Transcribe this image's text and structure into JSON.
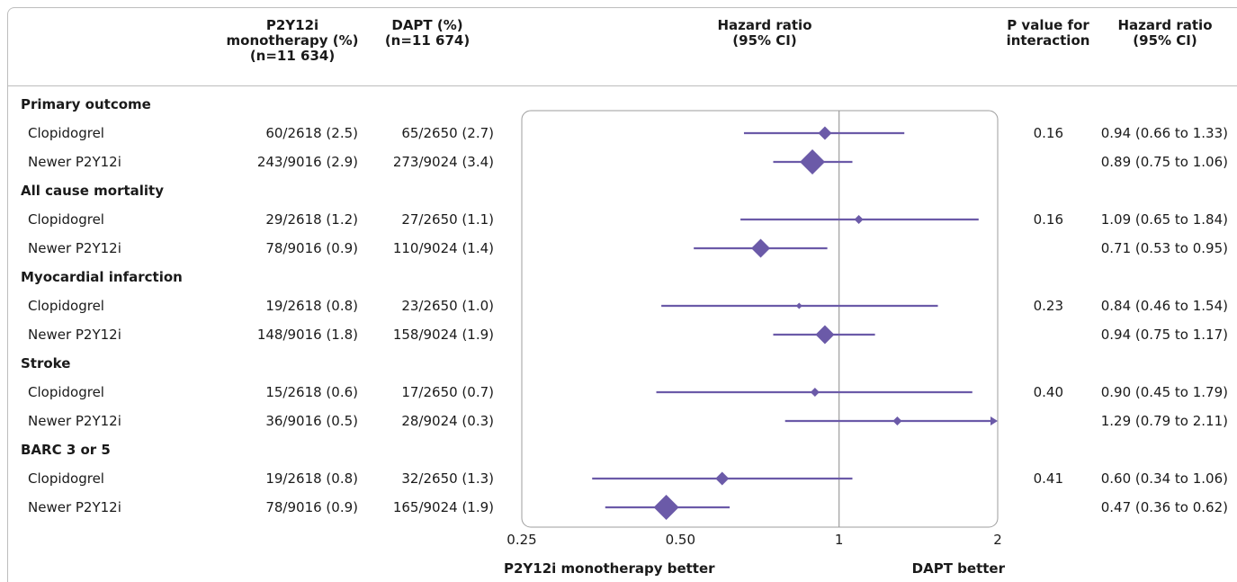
{
  "headers": {
    "p2y12": "P2Y12i\nmonotherapy (%)\n(n=11 634)",
    "dapt": "DAPT (%)\n(n=11 674)",
    "hr_plot": "Hazard ratio\n(95% CI)",
    "p_interaction": "P value for\ninteraction",
    "hr_text": "Hazard ratio\n(95% CI)"
  },
  "rows": [
    {
      "type": "group",
      "label": "Primary outcome"
    },
    {
      "type": "item",
      "label": "Clopidogrel",
      "p2y12": "60/2618 (2.5)",
      "dapt": "65/2650 (2.7)",
      "p": "0.16",
      "hr_text": "0.94 (0.66 to 1.33)"
    },
    {
      "type": "item",
      "label": "Newer P2Y12i",
      "p2y12": "243/9016 (2.9)",
      "dapt": "273/9024 (3.4)",
      "p": "",
      "hr_text": "0.89 (0.75 to 1.06)"
    },
    {
      "type": "group",
      "label": "All cause mortality"
    },
    {
      "type": "item",
      "label": "Clopidogrel",
      "p2y12": "29/2618 (1.2)",
      "dapt": "27/2650 (1.1)",
      "p": "0.16",
      "hr_text": "1.09 (0.65 to 1.84)"
    },
    {
      "type": "item",
      "label": "Newer P2Y12i",
      "p2y12": "78/9016 (0.9)",
      "dapt": "110/9024 (1.4)",
      "p": "",
      "hr_text": "0.71 (0.53 to 0.95)"
    },
    {
      "type": "group",
      "label": "Myocardial infarction"
    },
    {
      "type": "item",
      "label": "Clopidogrel",
      "p2y12": "19/2618 (0.8)",
      "dapt": "23/2650 (1.0)",
      "p": "0.23",
      "hr_text": "0.84 (0.46 to 1.54)"
    },
    {
      "type": "item",
      "label": "Newer P2Y12i",
      "p2y12": "148/9016 (1.8)",
      "dapt": "158/9024 (1.9)",
      "p": "",
      "hr_text": "0.94 (0.75 to 1.17)"
    },
    {
      "type": "group",
      "label": "Stroke"
    },
    {
      "type": "item",
      "label": "Clopidogrel",
      "p2y12": "15/2618 (0.6)",
      "dapt": "17/2650 (0.7)",
      "p": "0.40",
      "hr_text": "0.90 (0.45 to 1.79)"
    },
    {
      "type": "item",
      "label": "Newer P2Y12i",
      "p2y12": "36/9016 (0.5)",
      "dapt": "28/9024 (0.3)",
      "p": "",
      "hr_text": "1.29 (0.79 to 2.11)"
    },
    {
      "type": "group",
      "label": "BARC 3 or 5"
    },
    {
      "type": "item",
      "label": "Clopidogrel",
      "p2y12": "19/2618 (0.8)",
      "dapt": "32/2650 (1.3)",
      "p": "0.41",
      "hr_text": "0.60 (0.34 to 1.06)"
    },
    {
      "type": "item",
      "label": "Newer P2Y12i",
      "p2y12": "78/9016 (0.9)",
      "dapt": "165/9024 (1.9)",
      "p": "",
      "hr_text": "0.47 (0.36 to 0.62)"
    }
  ],
  "chart_data": {
    "type": "forest",
    "scale": "log",
    "xlim": [
      0.25,
      2
    ],
    "ticks": [
      0.25,
      0.5,
      1,
      2
    ],
    "tick_labels": [
      "0.25",
      "0.50",
      "1",
      "2"
    ],
    "reference_line": 1,
    "left_label": "P2Y12i monotherapy better",
    "right_label": "DAPT better",
    "marker_color": "#6b5aa8",
    "estimates": [
      {
        "hr": 0.94,
        "lo": 0.66,
        "hi": 1.33,
        "weight": "small"
      },
      {
        "hr": 0.89,
        "lo": 0.75,
        "hi": 1.06,
        "weight": "large"
      },
      {
        "hr": 1.09,
        "lo": 0.65,
        "hi": 1.84,
        "weight": "tiny"
      },
      {
        "hr": 0.71,
        "lo": 0.53,
        "hi": 0.95,
        "weight": "medium"
      },
      {
        "hr": 0.84,
        "lo": 0.46,
        "hi": 1.54,
        "weight": "dot"
      },
      {
        "hr": 0.94,
        "lo": 0.75,
        "hi": 1.17,
        "weight": "medium"
      },
      {
        "hr": 0.9,
        "lo": 0.45,
        "hi": 1.79,
        "weight": "tiny"
      },
      {
        "hr": 1.29,
        "lo": 0.79,
        "hi": 2.11,
        "weight": "tiny"
      },
      {
        "hr": 0.6,
        "lo": 0.34,
        "hi": 1.06,
        "weight": "small"
      },
      {
        "hr": 0.47,
        "lo": 0.36,
        "hi": 0.62,
        "weight": "large"
      }
    ]
  }
}
